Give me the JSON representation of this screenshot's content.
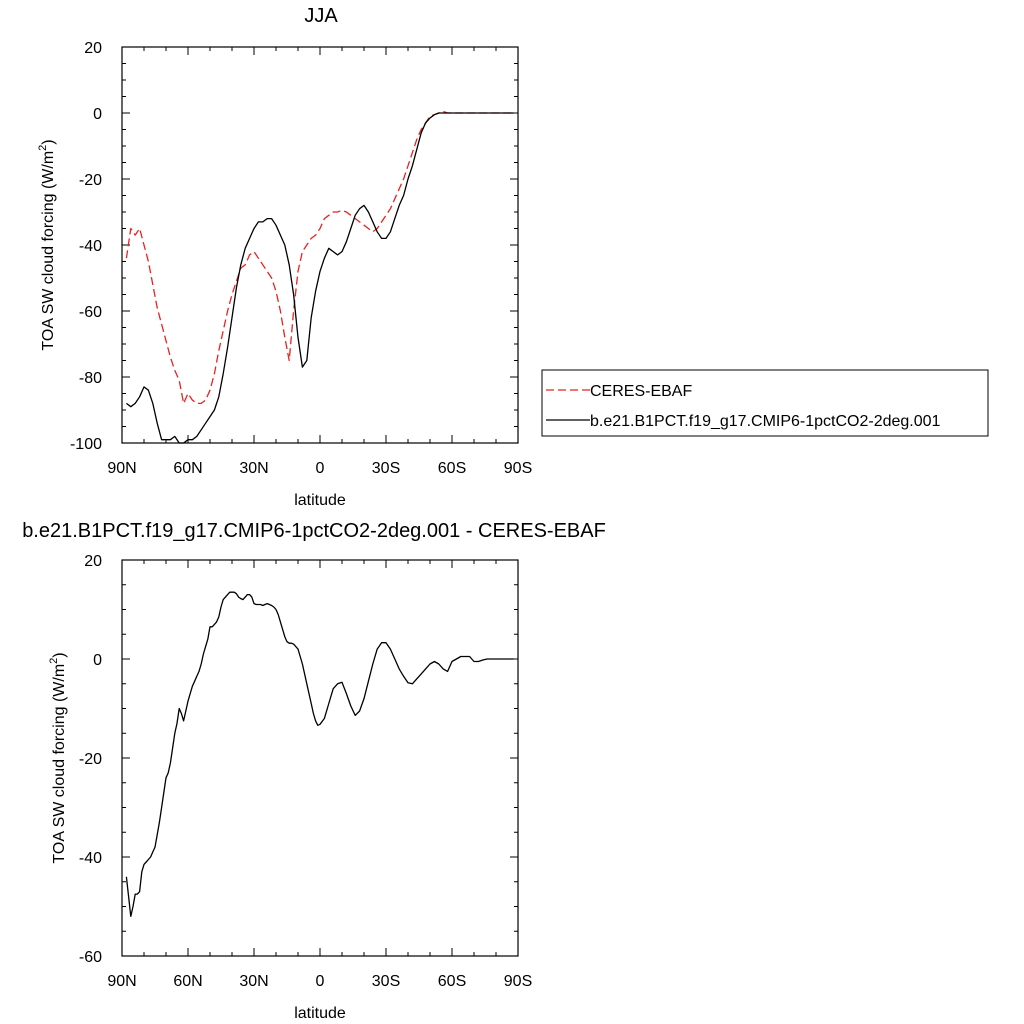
{
  "chart_data": [
    {
      "type": "line",
      "title": "JJA",
      "xlabel": "latitude",
      "ylabel": "TOA SW cloud forcing (W/m",
      "ylabel_sup": "2",
      "ylabel_close": ")",
      "xlim": [
        90,
        -90
      ],
      "ylim": [
        -100,
        20
      ],
      "grid": false,
      "legend_position": "right",
      "x_ticks": [
        {
          "value": 90,
          "label": "90N"
        },
        {
          "value": 60,
          "label": "60N"
        },
        {
          "value": 30,
          "label": "30N"
        },
        {
          "value": 0,
          "label": "0"
        },
        {
          "value": -30,
          "label": "30S"
        },
        {
          "value": -60,
          "label": "60S"
        },
        {
          "value": -90,
          "label": "90S"
        }
      ],
      "y_ticks": [
        {
          "value": 20,
          "label": "20"
        },
        {
          "value": 0,
          "label": "0"
        },
        {
          "value": -20,
          "label": "-20"
        },
        {
          "value": -40,
          "label": "-40"
        },
        {
          "value": -60,
          "label": "-60"
        },
        {
          "value": -80,
          "label": "-80"
        },
        {
          "value": -100,
          "label": "-100"
        }
      ],
      "series": [
        {
          "name": "CERES-EBAF",
          "color": "#e8221f",
          "dash": true,
          "x": [
            88,
            86,
            84,
            82,
            80,
            78,
            76,
            74,
            72,
            70,
            68,
            66,
            64,
            62,
            60,
            58,
            56,
            54,
            52,
            50,
            48,
            46,
            44,
            42,
            40,
            38,
            36,
            34,
            32,
            30,
            28,
            26,
            24,
            22,
            20,
            18,
            16,
            14,
            12,
            10,
            8,
            6,
            4,
            2,
            0,
            -2,
            -4,
            -6,
            -8,
            -10,
            -12,
            -14,
            -16,
            -18,
            -20,
            -22,
            -24,
            -26,
            -28,
            -30,
            -32,
            -34,
            -36,
            -38,
            -40,
            -42,
            -44,
            -46,
            -48,
            -50,
            -52,
            -54,
            -56,
            -58,
            -60,
            -62,
            -64,
            -66,
            -68,
            -70,
            -72,
            -74,
            -76,
            -78,
            -80,
            -82,
            -84,
            -86,
            -88
          ],
          "values": [
            -44,
            -35,
            -37,
            -35,
            -40,
            -45,
            -52,
            -59,
            -64,
            -69,
            -74,
            -78,
            -81,
            -88,
            -85,
            -87,
            -88,
            -88,
            -87,
            -84,
            -79,
            -72,
            -66,
            -60,
            -55,
            -51,
            -47,
            -46,
            -43,
            -42,
            -44,
            -46,
            -48,
            -50,
            -54,
            -60,
            -68,
            -75,
            -60,
            -48,
            -42,
            -40,
            -38,
            -37,
            -35,
            -32,
            -31,
            -30,
            -30,
            -29.5,
            -30,
            -31,
            -32,
            -33,
            -34,
            -35,
            -36,
            -35,
            -33,
            -31,
            -29,
            -26,
            -23,
            -20,
            -16,
            -12,
            -8,
            -5,
            -3,
            -1,
            -0.5,
            0,
            0.5,
            0,
            0,
            0,
            0,
            0,
            0,
            0,
            0,
            0,
            0,
            0,
            0,
            0,
            0,
            0,
            0
          ]
        },
        {
          "name": "b.e21.B1PCT.f19_g17.CMIP6-1pctCO2-2deg.001",
          "color": "#000000",
          "dash": false,
          "x": [
            88,
            86,
            84,
            82,
            80,
            78,
            76,
            74,
            72,
            70,
            68,
            66,
            64,
            62,
            60,
            58,
            56,
            54,
            52,
            50,
            48,
            46,
            44,
            42,
            40,
            38,
            36,
            34,
            32,
            30,
            28,
            26,
            24,
            22,
            20,
            18,
            16,
            14,
            12,
            10,
            8,
            6,
            4,
            2,
            0,
            -2,
            -4,
            -6,
            -8,
            -10,
            -12,
            -14,
            -16,
            -18,
            -20,
            -22,
            -24,
            -26,
            -28,
            -30,
            -32,
            -34,
            -36,
            -38,
            -40,
            -42,
            -44,
            -46,
            -48,
            -50,
            -52,
            -54,
            -56,
            -58,
            -60,
            -62,
            -64,
            -66,
            -68,
            -70,
            -72,
            -74,
            -76,
            -78,
            -80,
            -82,
            -84,
            -86,
            -88
          ],
          "values": [
            -88,
            -89,
            -88,
            -86,
            -83,
            -84,
            -88,
            -94,
            -99,
            -99,
            -99,
            -98,
            -100,
            -100,
            -99,
            -99,
            -98,
            -96,
            -94,
            -92,
            -90,
            -86,
            -79,
            -71,
            -62,
            -53,
            -46,
            -41,
            -38,
            -35,
            -33,
            -33,
            -32,
            -32,
            -34,
            -37,
            -40,
            -46,
            -55,
            -68,
            -77,
            -75,
            -62,
            -54,
            -48,
            -44,
            -41,
            -42,
            -43,
            -42,
            -39,
            -35,
            -31,
            -29,
            -28,
            -30,
            -33,
            -36,
            -38,
            -38,
            -36,
            -32,
            -28,
            -25,
            -20,
            -16,
            -11,
            -6,
            -3,
            -1.5,
            -0.5,
            0,
            0,
            0,
            0,
            0,
            0,
            0,
            0,
            0,
            0,
            0,
            0,
            0,
            0,
            0,
            0,
            0,
            0
          ]
        }
      ]
    },
    {
      "type": "line",
      "title": "b.e21.B1PCT.f19_g17.CMIP6-1pctCO2-2deg.001 - CERES-EBAF",
      "xlabel": "latitude",
      "ylabel": "TOA SW cloud forcing (W/m",
      "ylabel_sup": "2",
      "ylabel_close": ")",
      "xlim": [
        90,
        -90
      ],
      "ylim": [
        -60,
        20
      ],
      "grid": false,
      "x_ticks": [
        {
          "value": 90,
          "label": "90N"
        },
        {
          "value": 60,
          "label": "60N"
        },
        {
          "value": 30,
          "label": "30N"
        },
        {
          "value": 0,
          "label": "0"
        },
        {
          "value": -30,
          "label": "30S"
        },
        {
          "value": -60,
          "label": "60S"
        },
        {
          "value": -90,
          "label": "90S"
        }
      ],
      "y_ticks": [
        {
          "value": 20,
          "label": "20"
        },
        {
          "value": 0,
          "label": "0"
        },
        {
          "value": -20,
          "label": "-20"
        },
        {
          "value": -40,
          "label": "-40"
        },
        {
          "value": -60,
          "label": "-60"
        }
      ],
      "series": [
        {
          "color": "#000000",
          "dash": false,
          "x": [
            88,
            87,
            86,
            85,
            84,
            83,
            82,
            81,
            80,
            79,
            78,
            77,
            76,
            75,
            74,
            73,
            72,
            71,
            70,
            69,
            68,
            67,
            66,
            65,
            64,
            63,
            62,
            61,
            60,
            59,
            58,
            57,
            56,
            55,
            54,
            53,
            52,
            51,
            50,
            49,
            48,
            47,
            46,
            45,
            44,
            43,
            42,
            41,
            40,
            39,
            38,
            37,
            36,
            35,
            34,
            33,
            32,
            31,
            30,
            29,
            28,
            27,
            26,
            25,
            24,
            23,
            22,
            21,
            20,
            19,
            18,
            17,
            16,
            15,
            14,
            13,
            12,
            11,
            10,
            9,
            8,
            7,
            6,
            5,
            4,
            3,
            2,
            1,
            0,
            -2,
            -4,
            -6,
            -8,
            -10,
            -12,
            -14,
            -16,
            -18,
            -20,
            -22,
            -24,
            -26,
            -28,
            -30,
            -32,
            -34,
            -36,
            -38,
            -40,
            -42,
            -44,
            -46,
            -48,
            -50,
            -52,
            -54,
            -56,
            -58,
            -60,
            -62,
            -64,
            -66,
            -68,
            -70,
            -72,
            -74,
            -76,
            -78,
            -80,
            -82,
            -84,
            -86,
            -88
          ],
          "values": [
            -44,
            -48,
            -52,
            -50,
            -47.5,
            -47.5,
            -47,
            -43,
            -41.5,
            -41,
            -40.5,
            -40,
            -39,
            -38,
            -35.5,
            -33,
            -30,
            -27,
            -24,
            -23,
            -21,
            -18,
            -15,
            -13,
            -10,
            -11,
            -12.5,
            -10.5,
            -8.5,
            -7,
            -5.5,
            -4.5,
            -3.5,
            -2.5,
            -1,
            1,
            2.5,
            4,
            6.5,
            6.5,
            7,
            7.5,
            8.5,
            10.5,
            12,
            12.5,
            13,
            13.5,
            13.5,
            13.5,
            13.2,
            12.5,
            12.2,
            12,
            12.5,
            13,
            13,
            12.5,
            11.2,
            11,
            11,
            11,
            10.8,
            11,
            11.2,
            11,
            10.8,
            10.5,
            10,
            9,
            7.5,
            6,
            4.5,
            3.5,
            3.2,
            3.2,
            3,
            2.5,
            2,
            0.5,
            -1,
            -3,
            -5,
            -7,
            -9,
            -11,
            -12.5,
            -13.4,
            -13.2,
            -12,
            -9,
            -6,
            -5,
            -4.7,
            -7,
            -9.5,
            -11.4,
            -10.5,
            -8,
            -4.5,
            -1,
            2,
            3.3,
            3.3,
            2,
            0,
            -2,
            -3.5,
            -4.8,
            -5,
            -4,
            -3,
            -2,
            -1,
            -0.5,
            -1,
            -2,
            -2.5,
            -0.5,
            0,
            0.5,
            0.5,
            0.5,
            -0.5,
            -0.5,
            -0.2,
            0,
            0,
            0,
            0,
            0,
            0,
            0
          ]
        }
      ]
    }
  ]
}
